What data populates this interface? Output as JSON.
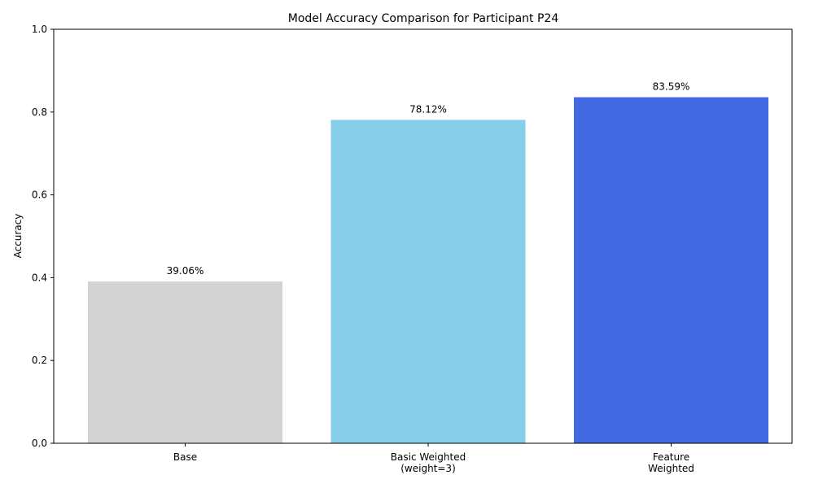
{
  "chart_data": {
    "type": "bar",
    "title": "Model Accuracy Comparison for Participant P24",
    "xlabel": "",
    "ylabel": "Accuracy",
    "ylim": [
      0,
      1.0
    ],
    "yticks": [
      0.0,
      0.2,
      0.4,
      0.6,
      0.8,
      1.0
    ],
    "ytick_labels": [
      "0.0",
      "0.2",
      "0.4",
      "0.6",
      "0.8",
      "1.0"
    ],
    "categories": [
      [
        "Base"
      ],
      [
        "Basic Weighted",
        "(weight=3)"
      ],
      [
        "Feature",
        "Weighted"
      ]
    ],
    "values": [
      0.3906,
      0.7812,
      0.8359
    ],
    "data_labels": [
      "39.06%",
      "78.12%",
      "83.59%"
    ],
    "colors": [
      "#d3d3d3",
      "#87ceeb",
      "#4169e1"
    ],
    "grid": false,
    "legend": "none"
  }
}
